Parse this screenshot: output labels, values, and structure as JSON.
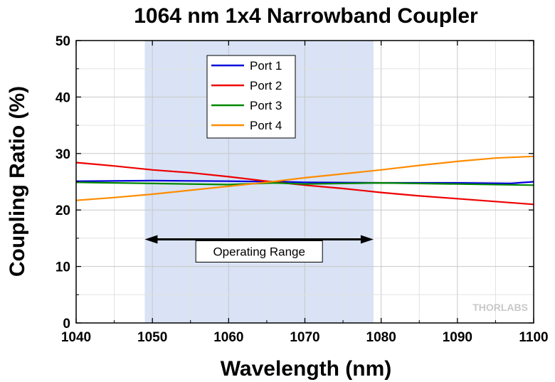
{
  "chart_data": {
    "type": "line",
    "title": "1064 nm 1x4 Narrowband Coupler",
    "xlabel": "Wavelength (nm)",
    "ylabel": "Coupling Ratio (%)",
    "xlim": [
      1040,
      1100
    ],
    "ylim": [
      0,
      50
    ],
    "xticks": [
      "1040",
      "1050",
      "1060",
      "1070",
      "1080",
      "1090",
      "1100"
    ],
    "yticks": [
      "0",
      "10",
      "20",
      "30",
      "40",
      "50"
    ],
    "grid": true,
    "legend_position": "top-left inside",
    "shaded_region": {
      "x": [
        1049,
        1079
      ],
      "color": "#d9e3f5"
    },
    "annotation": {
      "text": "Operating Range",
      "x_from": 1049,
      "x_to": 1079,
      "y": 14.8
    },
    "series": [
      {
        "name": "Port 1",
        "color": "#0000dd",
        "x": [
          1040,
          1050,
          1060,
          1067,
          1070,
          1080,
          1090,
          1097,
          1100
        ],
        "y": [
          25.1,
          25.2,
          25.1,
          25.0,
          24.9,
          24.8,
          24.8,
          24.7,
          25.0
        ]
      },
      {
        "name": "Port 2",
        "color": "#ee0000",
        "x": [
          1040,
          1045,
          1050,
          1055,
          1060,
          1065,
          1070,
          1075,
          1080,
          1085,
          1090,
          1095,
          1100
        ],
        "y": [
          28.4,
          27.8,
          27.1,
          26.6,
          25.9,
          25.1,
          24.4,
          23.8,
          23.1,
          22.5,
          22.0,
          21.5,
          21.0
        ]
      },
      {
        "name": "Port 3",
        "color": "#008800",
        "x": [
          1040,
          1050,
          1060,
          1066,
          1070,
          1080,
          1090,
          1100
        ],
        "y": [
          24.9,
          24.7,
          24.5,
          24.8,
          24.6,
          24.8,
          24.6,
          24.4
        ]
      },
      {
        "name": "Port 4",
        "color": "#ff8c00",
        "x": [
          1040,
          1045,
          1050,
          1055,
          1060,
          1065,
          1070,
          1075,
          1080,
          1085,
          1090,
          1095,
          1100
        ],
        "y": [
          21.7,
          22.2,
          22.8,
          23.5,
          24.2,
          24.9,
          25.7,
          26.4,
          27.1,
          27.9,
          28.6,
          29.2,
          29.5
        ]
      }
    ]
  },
  "watermark": "THORLABS"
}
